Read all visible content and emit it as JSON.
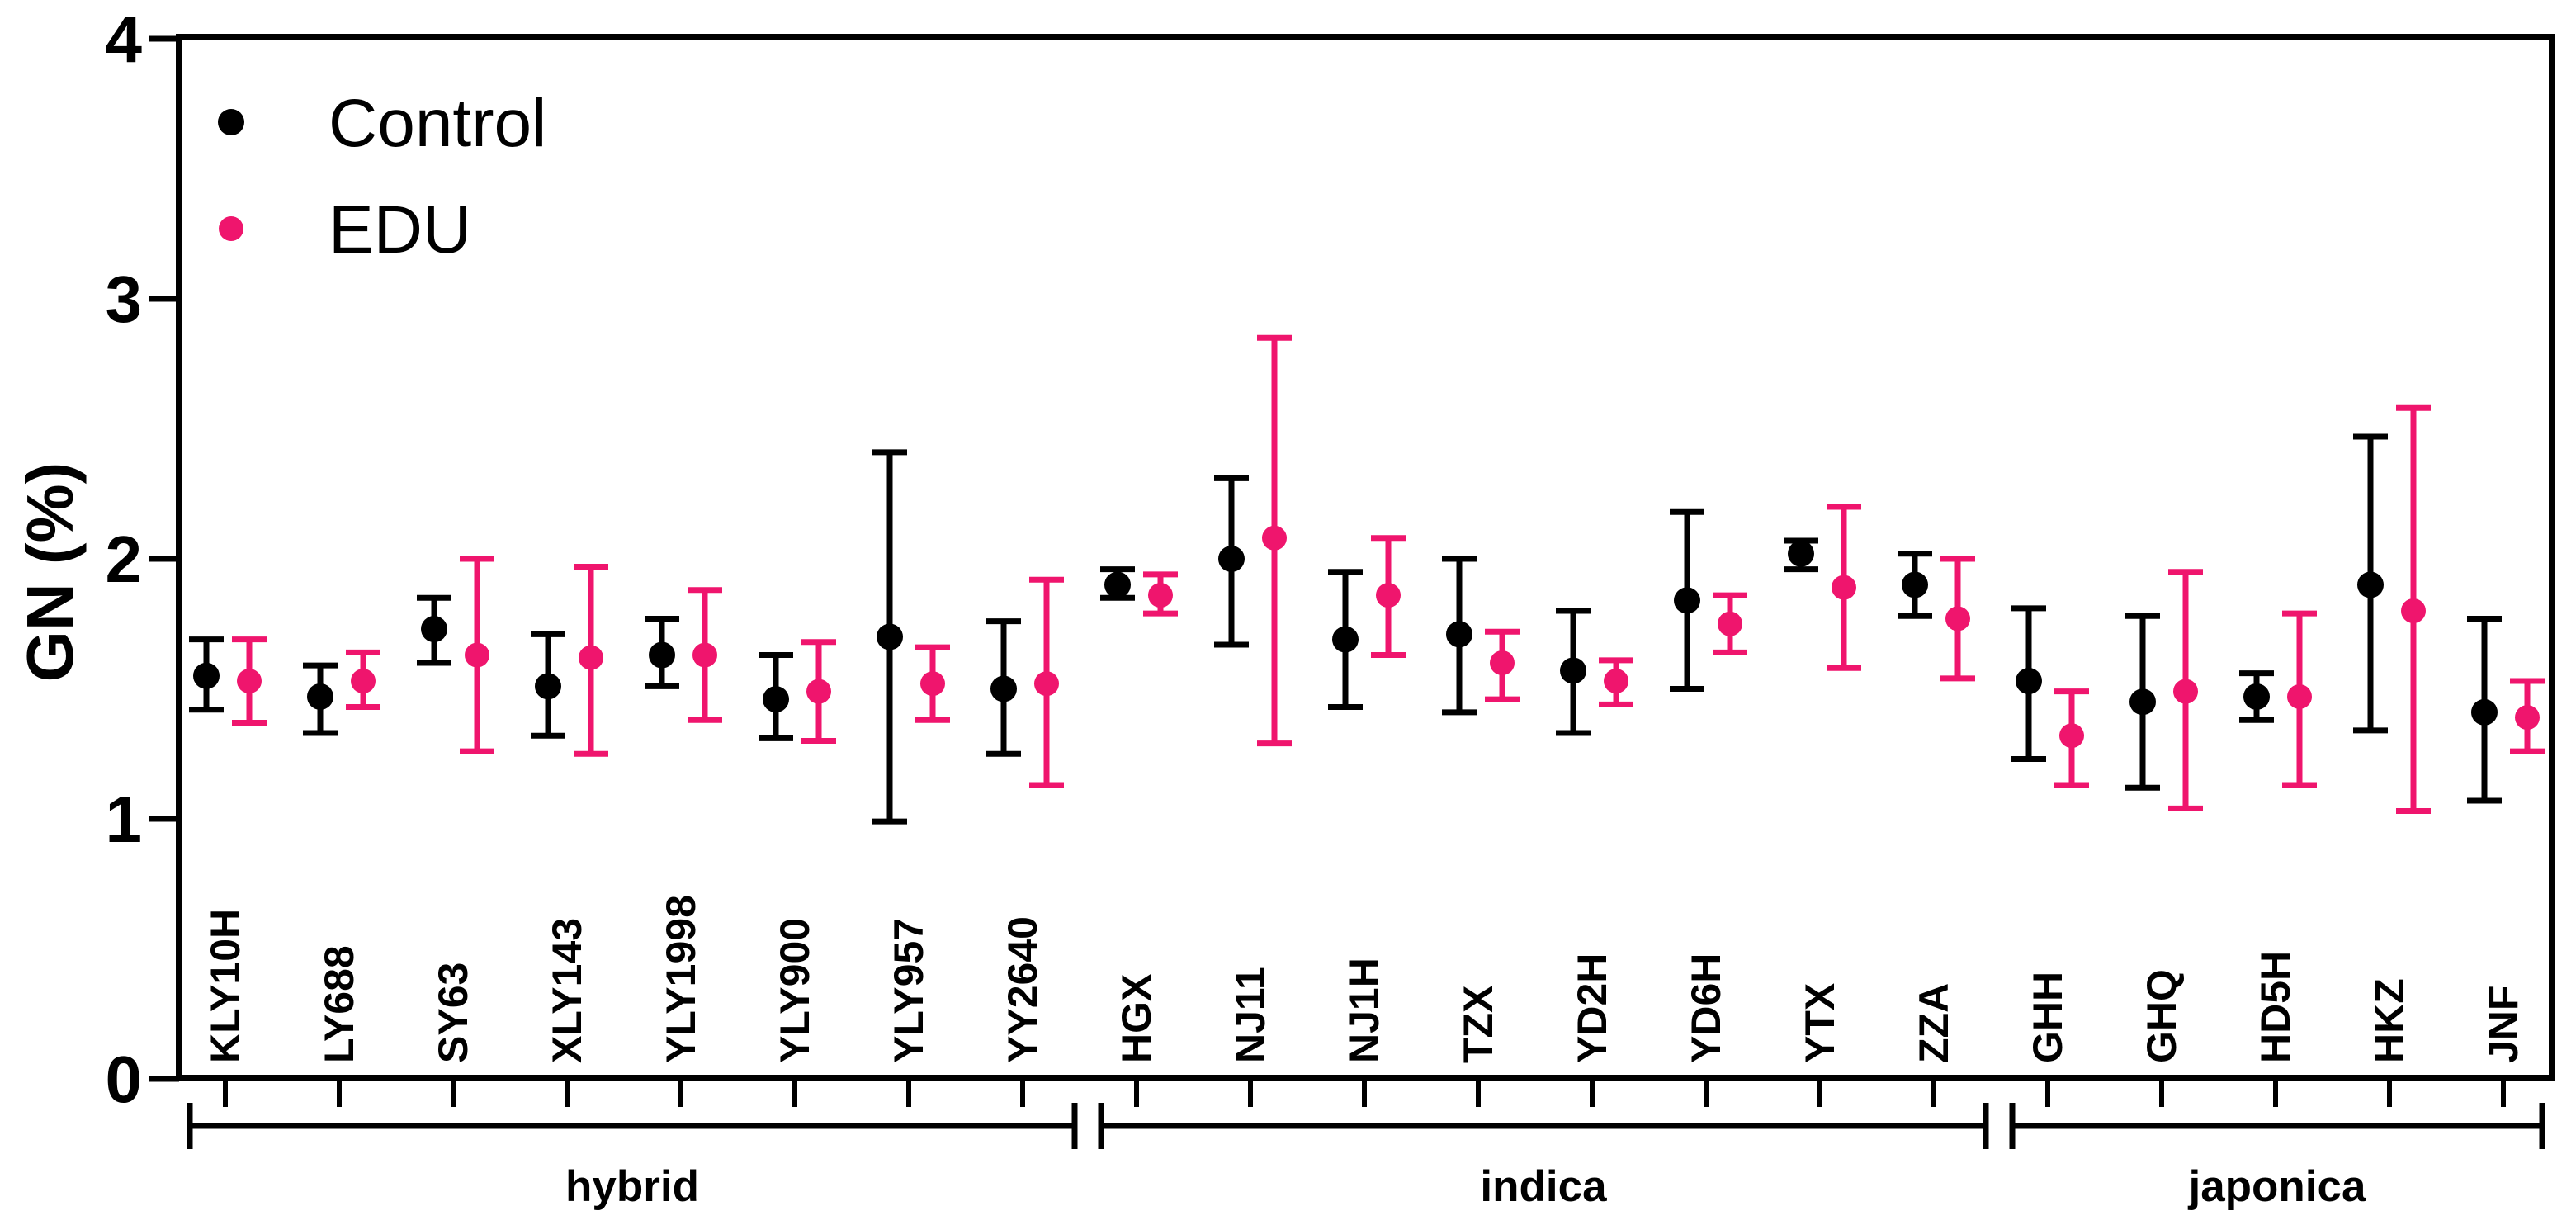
{
  "figure": {
    "background": "#ffffff",
    "axis_color": "#000000"
  },
  "legend": {
    "items": [
      {
        "label": "Control",
        "color": "#000000",
        "icon": "dot"
      },
      {
        "label": "EDU",
        "color": "#EF156D",
        "icon": "dot"
      }
    ]
  },
  "chart_data": {
    "type": "scatter",
    "title": "",
    "xlabel": "",
    "ylabel": "GN (%)",
    "ylim": [
      0,
      4
    ],
    "yticks": [
      "0",
      "1",
      "2",
      "3",
      "4"
    ],
    "grid": false,
    "legend_position": "top-left-inside",
    "error_bars": true,
    "series_names": [
      "Control",
      "EDU"
    ],
    "series_colors": {
      "Control": "#000000",
      "EDU": "#EF156D"
    },
    "groups": [
      {
        "name": "hybrid",
        "varieties": [
          {
            "label": "KLY10H",
            "control": {
              "mean": 1.55,
              "lo": 1.42,
              "hi": 1.69
            },
            "edu": {
              "mean": 1.53,
              "lo": 1.37,
              "hi": 1.69
            }
          },
          {
            "label": "LY688",
            "control": {
              "mean": 1.47,
              "lo": 1.33,
              "hi": 1.59
            },
            "edu": {
              "mean": 1.53,
              "lo": 1.43,
              "hi": 1.64
            }
          },
          {
            "label": "SY63",
            "control": {
              "mean": 1.73,
              "lo": 1.6,
              "hi": 1.85
            },
            "edu": {
              "mean": 1.63,
              "lo": 1.26,
              "hi": 2.0
            }
          },
          {
            "label": "XLY143",
            "control": {
              "mean": 1.51,
              "lo": 1.32,
              "hi": 1.71
            },
            "edu": {
              "mean": 1.62,
              "lo": 1.25,
              "hi": 1.97
            }
          },
          {
            "label": "YLY1998",
            "control": {
              "mean": 1.63,
              "lo": 1.51,
              "hi": 1.77
            },
            "edu": {
              "mean": 1.63,
              "lo": 1.38,
              "hi": 1.88
            }
          },
          {
            "label": "YLY900",
            "control": {
              "mean": 1.46,
              "lo": 1.31,
              "hi": 1.63
            },
            "edu": {
              "mean": 1.49,
              "lo": 1.3,
              "hi": 1.68
            }
          },
          {
            "label": "YLY957",
            "control": {
              "mean": 1.7,
              "lo": 0.99,
              "hi": 2.41
            },
            "edu": {
              "mean": 1.52,
              "lo": 1.38,
              "hi": 1.66
            }
          },
          {
            "label": "YY2640",
            "control": {
              "mean": 1.5,
              "lo": 1.25,
              "hi": 1.76
            },
            "edu": {
              "mean": 1.52,
              "lo": 1.13,
              "hi": 1.92
            }
          }
        ]
      },
      {
        "name": "indica",
        "varieties": [
          {
            "label": "HGX",
            "control": {
              "mean": 1.9,
              "lo": 1.85,
              "hi": 1.96
            },
            "edu": {
              "mean": 1.86,
              "lo": 1.79,
              "hi": 1.94
            }
          },
          {
            "label": "NJ11",
            "control": {
              "mean": 2.0,
              "lo": 1.67,
              "hi": 2.31
            },
            "edu": {
              "mean": 2.08,
              "lo": 1.29,
              "hi": 2.85
            }
          },
          {
            "label": "NJ1H",
            "control": {
              "mean": 1.69,
              "lo": 1.43,
              "hi": 1.95
            },
            "edu": {
              "mean": 1.86,
              "lo": 1.63,
              "hi": 2.08
            }
          },
          {
            "label": "TZX",
            "control": {
              "mean": 1.71,
              "lo": 1.41,
              "hi": 2.0
            },
            "edu": {
              "mean": 1.6,
              "lo": 1.46,
              "hi": 1.72
            }
          },
          {
            "label": "YD2H",
            "control": {
              "mean": 1.57,
              "lo": 1.33,
              "hi": 1.8
            },
            "edu": {
              "mean": 1.53,
              "lo": 1.44,
              "hi": 1.61
            }
          },
          {
            "label": "YD6H",
            "control": {
              "mean": 1.84,
              "lo": 1.5,
              "hi": 2.18
            },
            "edu": {
              "mean": 1.75,
              "lo": 1.64,
              "hi": 1.86
            }
          },
          {
            "label": "YTX",
            "control": {
              "mean": 2.02,
              "lo": 1.96,
              "hi": 2.07
            },
            "edu": {
              "mean": 1.89,
              "lo": 1.58,
              "hi": 2.2
            }
          },
          {
            "label": "ZZA",
            "control": {
              "mean": 1.9,
              "lo": 1.78,
              "hi": 2.02
            },
            "edu": {
              "mean": 1.77,
              "lo": 1.54,
              "hi": 2.0
            }
          }
        ]
      },
      {
        "name": "japonica",
        "varieties": [
          {
            "label": "GHH",
            "control": {
              "mean": 1.53,
              "lo": 1.23,
              "hi": 1.81
            },
            "edu": {
              "mean": 1.32,
              "lo": 1.13,
              "hi": 1.49
            }
          },
          {
            "label": "GHQ",
            "control": {
              "mean": 1.45,
              "lo": 1.12,
              "hi": 1.78
            },
            "edu": {
              "mean": 1.49,
              "lo": 1.04,
              "hi": 1.95
            }
          },
          {
            "label": "HD5H",
            "control": {
              "mean": 1.47,
              "lo": 1.38,
              "hi": 1.56
            },
            "edu": {
              "mean": 1.47,
              "lo": 1.13,
              "hi": 1.79
            }
          },
          {
            "label": "HKZ",
            "control": {
              "mean": 1.9,
              "lo": 1.34,
              "hi": 2.47
            },
            "edu": {
              "mean": 1.8,
              "lo": 1.03,
              "hi": 2.58
            }
          },
          {
            "label": "JNF",
            "control": {
              "mean": 1.41,
              "lo": 1.07,
              "hi": 1.77
            },
            "edu": {
              "mean": 1.39,
              "lo": 1.26,
              "hi": 1.53
            }
          }
        ]
      }
    ]
  }
}
